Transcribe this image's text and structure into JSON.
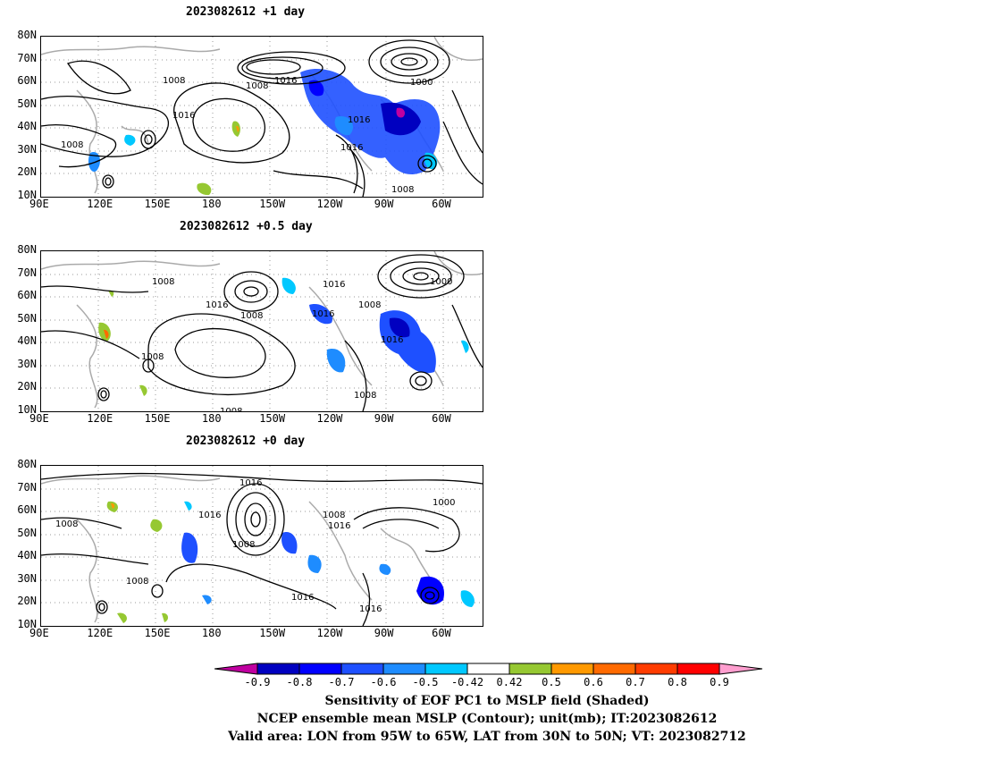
{
  "panels": [
    {
      "title": "2023082612  +1 day"
    },
    {
      "title": "2023082612  +0.5 day"
    },
    {
      "title": "2023082612  +0 day"
    }
  ],
  "lat_labels": [
    "80N",
    "70N",
    "60N",
    "50N",
    "40N",
    "30N",
    "20N",
    "10N"
  ],
  "lon_labels": [
    "90E",
    "120E",
    "150E",
    "180",
    "150W",
    "120W",
    "90W",
    "60W"
  ],
  "contour_labels": {
    "p1": [
      "1008",
      "1008",
      "1016",
      "1016",
      "1000",
      "1016",
      "1008",
      "1016",
      "1008"
    ],
    "p2": [
      "1008",
      "1016",
      "1008",
      "1016",
      "1016",
      "1008",
      "1000",
      "1016",
      "1008",
      "1008",
      "1008"
    ],
    "p3": [
      "1016",
      "1016",
      "1008",
      "1008",
      "1008",
      "1016",
      "1000",
      "1008",
      "1016",
      "1016"
    ]
  },
  "colorbar": {
    "colors": [
      "#c000a0",
      "#0000c0",
      "#0000ff",
      "#1e50ff",
      "#1e8cff",
      "#00c8ff",
      "#ffffff",
      "#96c832",
      "#ff9900",
      "#ff6a00",
      "#ff3c00",
      "#ff0000",
      "#ff9ecf"
    ],
    "ticks": [
      "-0.9",
      "-0.8",
      "-0.7",
      "-0.6",
      "-0.5",
      "-0.42",
      "0.42",
      "0.5",
      "0.6",
      "0.7",
      "0.8",
      "0.9"
    ]
  },
  "captions": [
    "Sensitivity of EOF PC1 to MSLP field (Shaded)",
    "NCEP ensemble mean MSLP (Contour); unit(mb); IT:2023082612",
    "Valid area: LON from 95W to 65W, LAT from 30N to 50N; VT: 2023082712"
  ]
}
